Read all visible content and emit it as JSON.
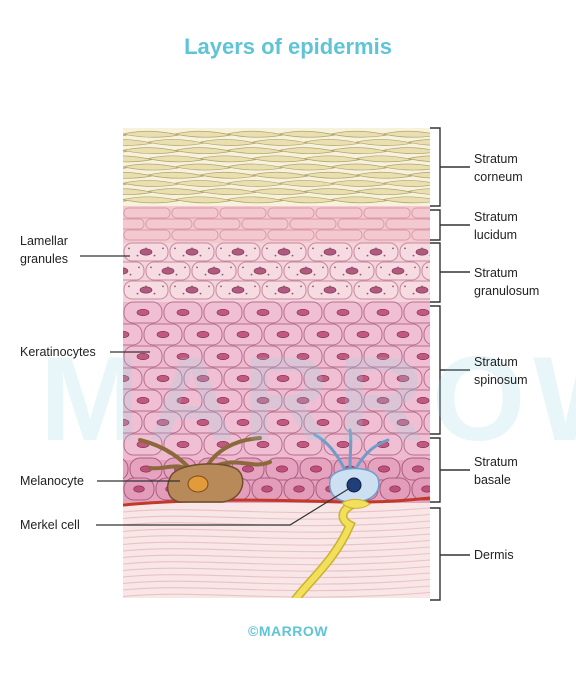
{
  "title": "Layers of epidermis",
  "watermark": "MARROW",
  "footer": "©MARROW",
  "layers": [
    {
      "id": "corneum",
      "lines": [
        "Stratum",
        "corneum"
      ]
    },
    {
      "id": "lucidum",
      "lines": [
        "Stratum",
        "lucidum"
      ]
    },
    {
      "id": "granulosum",
      "lines": [
        "Stratum",
        "granulosum"
      ]
    },
    {
      "id": "spinosum",
      "lines": [
        "Stratum",
        "spinosum"
      ]
    },
    {
      "id": "basale",
      "lines": [
        "Stratum",
        "basale"
      ]
    },
    {
      "id": "dermis",
      "lines": [
        "Dermis"
      ]
    }
  ],
  "callouts": [
    {
      "id": "lamellar",
      "lines": [
        "Lamellar",
        "granules"
      ]
    },
    {
      "id": "keratinocytes",
      "lines": [
        "Keratinocytes"
      ]
    },
    {
      "id": "melanocyte",
      "lines": [
        "Melanocyte"
      ]
    },
    {
      "id": "merkel",
      "lines": [
        "Merkel cell"
      ]
    }
  ],
  "colors": {
    "title": "#5fc4d6",
    "corneum": "#eee7c4",
    "lucidum": "#f3c8cf",
    "granulosum": "#f4d4dc",
    "spinosum": "#efb9cf",
    "basale": "#e6a3bf",
    "dermis": "#f9e6e6",
    "melanocyte": "#b88a5a",
    "merkel": "#bcd6ec",
    "nerve": "#f2df5a"
  }
}
